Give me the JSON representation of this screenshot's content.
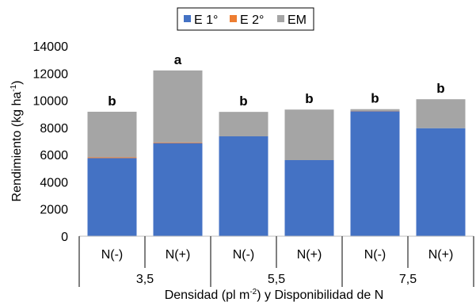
{
  "chart_data": {
    "type": "bar",
    "stacked": true,
    "categories": [
      "N(-)",
      "N(+)",
      "N(-)",
      "N(+)",
      "N(-)",
      "N(+)"
    ],
    "groups": [
      {
        "label": "3,5",
        "categories": [
          "N(-)",
          "N(+)"
        ]
      },
      {
        "label": "5,5",
        "categories": [
          "N(-)",
          "N(+)"
        ]
      },
      {
        "label": "7,5",
        "categories": [
          "N(-)",
          "N(+)"
        ]
      }
    ],
    "series": [
      {
        "name": "E 1°",
        "color": "#4472C4",
        "values": [
          5750,
          6850,
          7350,
          5600,
          9200,
          7950
        ]
      },
      {
        "name": "E 2°",
        "color": "#ED7D31",
        "values": [
          60,
          50,
          0,
          0,
          20,
          0
        ]
      },
      {
        "name": "EM",
        "color": "#A5A5A5",
        "values": [
          3350,
          5300,
          1800,
          3720,
          130,
          2130
        ]
      }
    ],
    "significance_labels": [
      "b",
      "a",
      "b",
      "b",
      "b",
      "b"
    ],
    "ylabel_main": "Rendimiento (kg ha",
    "ylabel_sup": "-1",
    "ylabel_end": ")",
    "xlabel_main": "Densidad (pl m",
    "xlabel_sup": "-2",
    "xlabel_end": ") y Disponibilidad de N",
    "ylim": [
      0,
      14000
    ],
    "yticks": [
      0,
      2000,
      4000,
      6000,
      8000,
      10000,
      12000,
      14000
    ],
    "grid": false,
    "legend_position": "top-center"
  }
}
